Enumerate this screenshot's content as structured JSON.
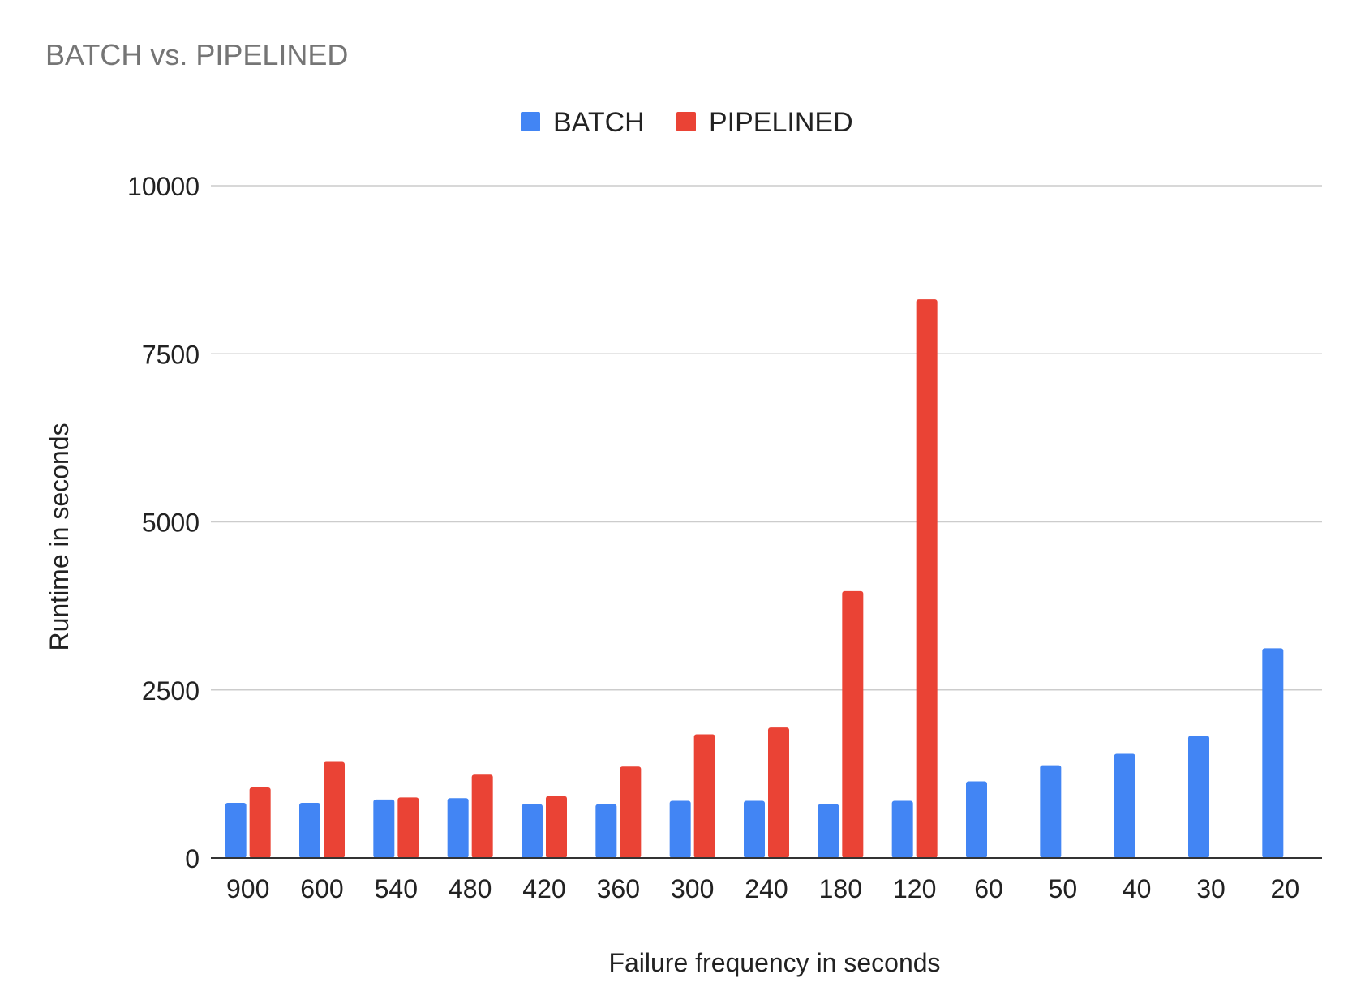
{
  "chart_data": {
    "type": "bar",
    "title": "BATCH vs. PIPELINED",
    "xlabel": "Failure frequency in seconds",
    "ylabel": "Runtime in seconds",
    "categories": [
      "900",
      "600",
      "540",
      "480",
      "420",
      "360",
      "300",
      "240",
      "180",
      "120",
      "60",
      "50",
      "40",
      "30",
      "20"
    ],
    "series": [
      {
        "name": "BATCH",
        "color": "#4285f4",
        "values": [
          820,
          820,
          870,
          890,
          800,
          800,
          850,
          850,
          800,
          850,
          1140,
          1380,
          1550,
          1820,
          3120
        ]
      },
      {
        "name": "PIPELINED",
        "color": "#ea4335",
        "values": [
          1050,
          1430,
          900,
          1240,
          920,
          1360,
          1840,
          1940,
          3970,
          8310,
          null,
          null,
          null,
          null,
          null
        ]
      }
    ],
    "ylim": [
      0,
      10000
    ],
    "yticks": [
      0,
      2500,
      5000,
      7500,
      10000
    ],
    "grid": true,
    "legend_position": "top-center"
  }
}
